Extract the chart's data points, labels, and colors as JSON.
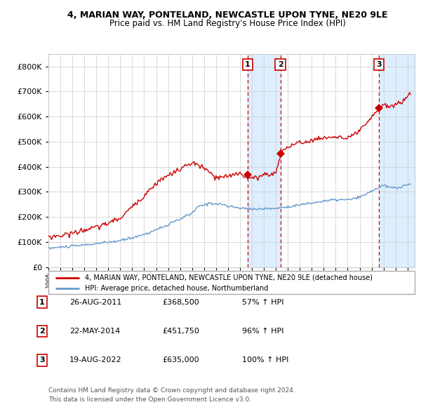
{
  "title1": "4, MARIAN WAY, PONTELAND, NEWCASTLE UPON TYNE, NE20 9LE",
  "title2": "Price paid vs. HM Land Registry's House Price Index (HPI)",
  "legend_line1": "4, MARIAN WAY, PONTELAND, NEWCASTLE UPON TYNE, NE20 9LE (detached house)",
  "legend_line2": "HPI: Average price, detached house, Northumberland",
  "footer1": "Contains HM Land Registry data © Crown copyright and database right 2024.",
  "footer2": "This data is licensed under the Open Government Licence v3.0.",
  "transactions": [
    {
      "num": 1,
      "date": "26-AUG-2011",
      "price": "£368,500",
      "pct": "57% ↑ HPI"
    },
    {
      "num": 2,
      "date": "22-MAY-2014",
      "price": "£451,750",
      "pct": "96% ↑ HPI"
    },
    {
      "num": 3,
      "date": "19-AUG-2022",
      "price": "£635,000",
      "pct": "100% ↑ HPI"
    }
  ],
  "sale_dates": [
    2011.65,
    2014.38,
    2022.63
  ],
  "sale_prices": [
    368500,
    451750,
    635000
  ],
  "red_color": "#cc0000",
  "blue_color": "#6699cc",
  "vspan_color": "#ddeeff",
  "background_color": "#ffffff",
  "grid_color": "#cccccc",
  "ylim": [
    0,
    850000
  ],
  "xlim_start": 1995.0,
  "xlim_end": 2025.3,
  "hpi_ctrl_x": [
    1995,
    1997,
    1999,
    2001,
    2003,
    2005,
    2007,
    2007.5,
    2008.5,
    2009.5,
    2010,
    2011,
    2012,
    2013,
    2014,
    2015,
    2016,
    2017,
    2018,
    2019,
    2020,
    2020.5,
    2021,
    2021.5,
    2022,
    2022.5,
    2023,
    2023.5,
    2024,
    2024.5,
    2025.3
  ],
  "hpi_ctrl_y": [
    75000,
    83000,
    93000,
    105000,
    130000,
    168000,
    215000,
    240000,
    255000,
    250000,
    242000,
    235000,
    232000,
    232000,
    234000,
    240000,
    248000,
    255000,
    263000,
    268000,
    268000,
    272000,
    278000,
    290000,
    303000,
    315000,
    325000,
    318000,
    315000,
    320000,
    332000
  ],
  "red_ctrl_x": [
    1995,
    1996,
    1997,
    1998,
    1999,
    2000,
    2001,
    2002,
    2003,
    2004,
    2005,
    2006,
    2007,
    2007.8,
    2008.5,
    2009,
    2010,
    2010.5,
    2011,
    2011.5,
    2012,
    2012.5,
    2013,
    2013.5,
    2014,
    2014.5,
    2015,
    2016,
    2017,
    2018,
    2019,
    2020,
    2020.5,
    2021,
    2021.5,
    2022,
    2022.4,
    2022.7,
    2023,
    2023.5,
    2024,
    2024.5,
    2025.3
  ],
  "red_ctrl_y": [
    120000,
    125000,
    135000,
    148000,
    158000,
    175000,
    195000,
    240000,
    285000,
    335000,
    365000,
    390000,
    415000,
    400000,
    375000,
    355000,
    360000,
    370000,
    375000,
    360000,
    352000,
    358000,
    370000,
    368000,
    378000,
    460000,
    480000,
    495000,
    505000,
    515000,
    520000,
    510000,
    525000,
    545000,
    565000,
    595000,
    620000,
    638000,
    650000,
    635000,
    650000,
    655000,
    700000
  ]
}
